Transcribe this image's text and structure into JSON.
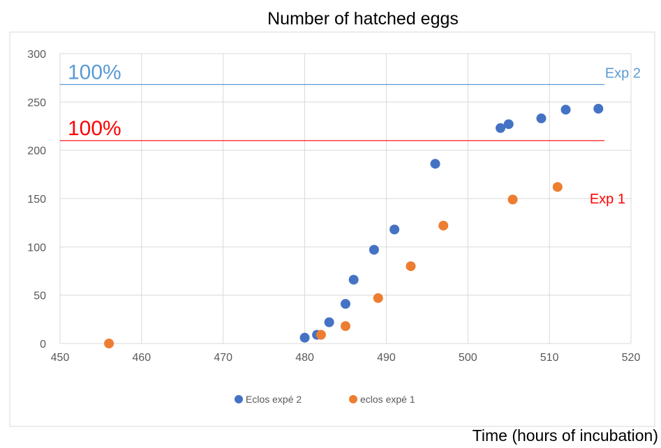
{
  "chart_data": {
    "type": "scatter",
    "title": "Number of hatched eggs",
    "xlabel": "Time (hours of incubation)",
    "ylabel": "",
    "xlim": [
      450,
      520
    ],
    "ylim": [
      0,
      300
    ],
    "xticks": [
      450,
      460,
      470,
      480,
      490,
      500,
      510,
      520
    ],
    "yticks": [
      0,
      50,
      100,
      150,
      200,
      250,
      300
    ],
    "grid": true,
    "legend_position": "bottom",
    "series": [
      {
        "name": "Eclos expé 2",
        "color": "#4472C4",
        "points": [
          {
            "x": 480,
            "y": 6
          },
          {
            "x": 481.5,
            "y": 9
          },
          {
            "x": 483,
            "y": 22
          },
          {
            "x": 485,
            "y": 41
          },
          {
            "x": 486,
            "y": 66
          },
          {
            "x": 488.5,
            "y": 97
          },
          {
            "x": 491,
            "y": 118
          },
          {
            "x": 496,
            "y": 186
          },
          {
            "x": 504,
            "y": 223
          },
          {
            "x": 505,
            "y": 227
          },
          {
            "x": 509,
            "y": 233
          },
          {
            "x": 512,
            "y": 242
          },
          {
            "x": 516,
            "y": 243
          }
        ]
      },
      {
        "name": "eclos expé 1",
        "color": "#ED7D31",
        "points": [
          {
            "x": 456,
            "y": 0
          },
          {
            "x": 482,
            "y": 9
          },
          {
            "x": 485,
            "y": 18
          },
          {
            "x": 489,
            "y": 47
          },
          {
            "x": 493,
            "y": 80
          },
          {
            "x": 497,
            "y": 122
          },
          {
            "x": 505.5,
            "y": 149
          },
          {
            "x": 511,
            "y": 162
          }
        ]
      }
    ],
    "reference_lines": [
      {
        "y": 268,
        "color": "#5B9BD5",
        "label": "100%",
        "end_label": "Exp 2"
      },
      {
        "y": 210,
        "color": "#FF0000",
        "label": "100%",
        "end_label": "Exp 1"
      }
    ]
  }
}
